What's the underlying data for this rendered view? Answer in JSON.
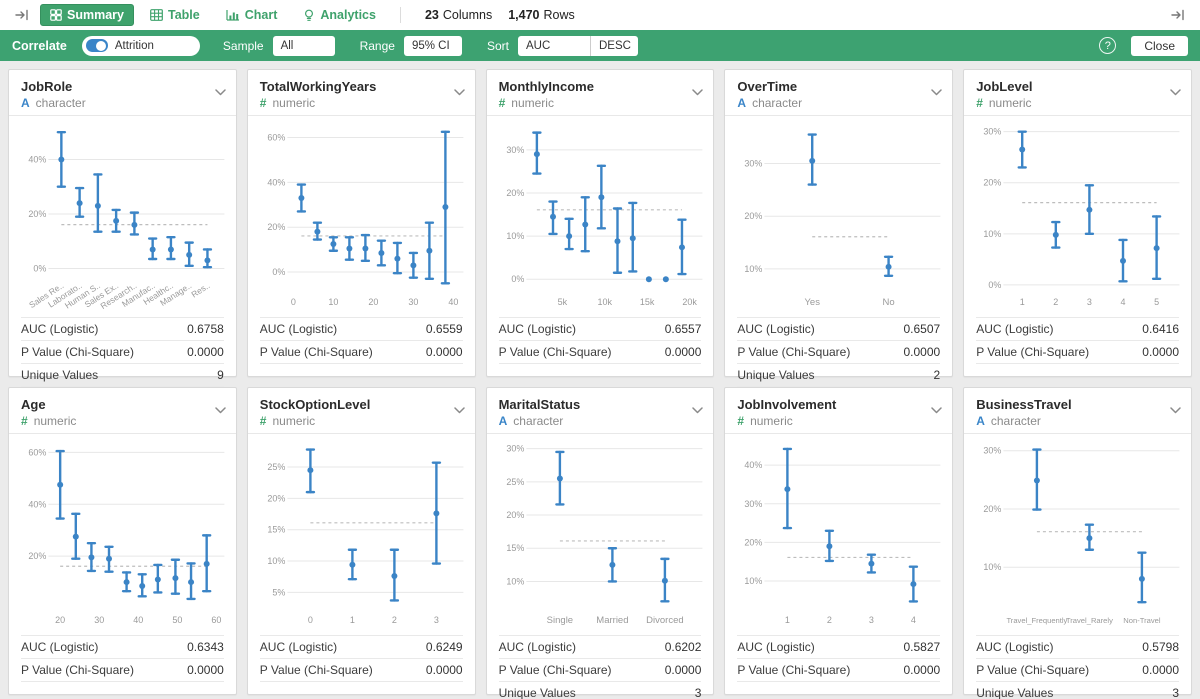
{
  "colors": {
    "green": "#3da271",
    "tab_green": "#3fa26c",
    "blue": "#3b84c6",
    "baseline_gray": "#bdbdbd",
    "grid_gray": "#e7e7e7"
  },
  "topbar": {
    "tabs": [
      {
        "label": "Summary",
        "active": true
      },
      {
        "label": "Table",
        "active": false
      },
      {
        "label": "Chart",
        "active": false
      },
      {
        "label": "Analytics",
        "active": false
      }
    ],
    "columns_count": "23",
    "columns_label": "Columns",
    "rows_count": "1,470",
    "rows_label": "Rows"
  },
  "toolbar": {
    "title": "Correlate",
    "target_label": "Attrition",
    "sample_label": "Sample",
    "sample_value": "All",
    "range_label": "Range",
    "range_value": "95% CI",
    "sort_label": "Sort",
    "sort_value": "AUC",
    "sort_order": "DESC",
    "help_glyph": "?",
    "close_label": "Close"
  },
  "cards": [
    {
      "title": "JobRole",
      "type": "character",
      "stats": [
        [
          "AUC (Logistic)",
          "0.6758"
        ],
        [
          "P Value (Chi-Square)",
          "0.0000"
        ],
        [
          "Unique Values",
          "9"
        ]
      ],
      "chart": {
        "type": "errorbar",
        "ylim": [
          -2,
          53
        ],
        "yticks": [
          0,
          20,
          40
        ],
        "baseline": 16.1,
        "rotate_labels": true,
        "categories": [
          "Sales Re..",
          "Laborato..",
          "Human S..",
          "Sales Ex..",
          "Research..",
          "Manufac..",
          "Healthc..",
          "Manage..",
          "Res.."
        ],
        "points": [
          {
            "v": 40,
            "lo": 30,
            "hi": 50
          },
          {
            "v": 24,
            "lo": 19,
            "hi": 29.5
          },
          {
            "v": 23,
            "lo": 13.5,
            "hi": 34.5
          },
          {
            "v": 17.5,
            "lo": 13.5,
            "hi": 21.5
          },
          {
            "v": 16,
            "lo": 12.5,
            "hi": 20.5
          },
          {
            "v": 7,
            "lo": 3.5,
            "hi": 11
          },
          {
            "v": 7,
            "lo": 3.5,
            "hi": 11.5
          },
          {
            "v": 5,
            "lo": 1,
            "hi": 9.5
          },
          {
            "v": 3,
            "lo": 0.5,
            "hi": 7
          }
        ]
      }
    },
    {
      "title": "TotalWorkingYears",
      "type": "numeric",
      "stats": [
        [
          "AUC (Logistic)",
          "0.6559"
        ],
        [
          "P Value (Chi-Square)",
          "0.0000"
        ]
      ],
      "chart": {
        "type": "errorbar",
        "ylim": [
          -8,
          66
        ],
        "yticks": [
          0,
          20,
          40,
          60
        ],
        "baseline": 16.1,
        "xlim": [
          -1,
          41
        ],
        "xticks": [
          {
            "x": 0,
            "label": "0"
          },
          {
            "x": 10,
            "label": "10"
          },
          {
            "x": 20,
            "label": "20"
          },
          {
            "x": 30,
            "label": "30"
          },
          {
            "x": 40,
            "label": "40"
          }
        ],
        "x": [
          2,
          6,
          10,
          14,
          18,
          22,
          26,
          30,
          34,
          38
        ],
        "points": [
          {
            "v": 33,
            "lo": 27,
            "hi": 39
          },
          {
            "v": 18,
            "lo": 14.5,
            "hi": 22
          },
          {
            "v": 12.5,
            "lo": 9.5,
            "hi": 15.5
          },
          {
            "v": 10.5,
            "lo": 5.5,
            "hi": 15.5
          },
          {
            "v": 10.5,
            "lo": 5,
            "hi": 16.5
          },
          {
            "v": 8.5,
            "lo": 3,
            "hi": 14
          },
          {
            "v": 6,
            "lo": -0.5,
            "hi": 13
          },
          {
            "v": 3,
            "lo": -2.5,
            "hi": 8.5
          },
          {
            "v": 9.5,
            "lo": -3,
            "hi": 22
          },
          {
            "v": 29,
            "lo": -5,
            "hi": 62.5
          }
        ]
      }
    },
    {
      "title": "MonthlyIncome",
      "type": "numeric",
      "stats": [
        [
          "AUC (Logistic)",
          "0.6557"
        ],
        [
          "P Value (Chi-Square)",
          "0.0000"
        ]
      ],
      "chart": {
        "type": "errorbar",
        "ylim": [
          -2.5,
          36
        ],
        "yticks": [
          0,
          10,
          20,
          30
        ],
        "baseline": 16.1,
        "xlim": [
          1,
          20.8
        ],
        "xticks": [
          {
            "x": 5,
            "label": "5k"
          },
          {
            "x": 10,
            "label": "10k"
          },
          {
            "x": 15,
            "label": "15k"
          },
          {
            "x": 20,
            "label": "20k"
          }
        ],
        "x": [
          2,
          3.9,
          5.8,
          7.7,
          9.6,
          11.5,
          13.3,
          15.2,
          17.2,
          19.1
        ],
        "points": [
          {
            "v": 29,
            "lo": 24.5,
            "hi": 34
          },
          {
            "v": 14.5,
            "lo": 10.5,
            "hi": 18
          },
          {
            "v": 10,
            "lo": 7,
            "hi": 14
          },
          {
            "v": 12.7,
            "lo": 6.5,
            "hi": 19
          },
          {
            "v": 19,
            "lo": 11.8,
            "hi": 26.3
          },
          {
            "v": 8.8,
            "lo": 1.5,
            "hi": 16.4
          },
          {
            "v": 9.5,
            "lo": 1.8,
            "hi": 17.7
          },
          {
            "v": 0,
            "lo": 0,
            "hi": 0
          },
          {
            "v": 0,
            "lo": 0,
            "hi": 0
          },
          {
            "v": 7.4,
            "lo": 1.2,
            "hi": 13.8
          }
        ]
      }
    },
    {
      "title": "OverTime",
      "type": "character",
      "stats": [
        [
          "AUC (Logistic)",
          "0.6507"
        ],
        [
          "P Value (Chi-Square)",
          "0.0000"
        ],
        [
          "Unique Values",
          "2"
        ]
      ],
      "chart": {
        "type": "errorbar",
        "ylim": [
          6,
          37.5
        ],
        "yticks": [
          10,
          20,
          30
        ],
        "baseline": 16.1,
        "categories": [
          "Yes",
          "No"
        ],
        "points": [
          {
            "v": 30.5,
            "lo": 26,
            "hi": 35.5
          },
          {
            "v": 10.4,
            "lo": 8.7,
            "hi": 12.3
          }
        ]
      }
    },
    {
      "title": "JobLevel",
      "type": "numeric",
      "stats": [
        [
          "AUC (Logistic)",
          "0.6416"
        ],
        [
          "P Value (Chi-Square)",
          "0.0000"
        ]
      ],
      "chart": {
        "type": "errorbar",
        "ylim": [
          -1,
          31.5
        ],
        "yticks": [
          0,
          10,
          20,
          30
        ],
        "baseline": 16.1,
        "xlim": [
          0.5,
          5.5
        ],
        "xticks": [
          {
            "x": 1,
            "label": "1"
          },
          {
            "x": 2,
            "label": "2"
          },
          {
            "x": 3,
            "label": "3"
          },
          {
            "x": 4,
            "label": "4"
          },
          {
            "x": 5,
            "label": "5"
          }
        ],
        "x": [
          1,
          2,
          3,
          4,
          5
        ],
        "points": [
          {
            "v": 26.5,
            "lo": 23,
            "hi": 30
          },
          {
            "v": 9.8,
            "lo": 7.3,
            "hi": 12.3
          },
          {
            "v": 14.7,
            "lo": 10,
            "hi": 19.5
          },
          {
            "v": 4.7,
            "lo": 0.7,
            "hi": 8.8
          },
          {
            "v": 7.2,
            "lo": 1.2,
            "hi": 13.4
          }
        ]
      }
    },
    {
      "title": "Age",
      "type": "numeric",
      "stats": [
        [
          "AUC (Logistic)",
          "0.6343"
        ],
        [
          "P Value (Chi-Square)",
          "0.0000"
        ]
      ],
      "chart": {
        "type": "errorbar",
        "ylim": [
          0,
          64
        ],
        "yticks": [
          20,
          40,
          60
        ],
        "baseline": 16.1,
        "xlim": [
          17.5,
          60.5
        ],
        "xticks": [
          {
            "x": 20,
            "label": "20"
          },
          {
            "x": 30,
            "label": "30"
          },
          {
            "x": 40,
            "label": "40"
          },
          {
            "x": 50,
            "label": "50"
          },
          {
            "x": 60,
            "label": "60"
          }
        ],
        "x": [
          20,
          24,
          28,
          32.5,
          37,
          41,
          45,
          49.5,
          53.5,
          57.5
        ],
        "points": [
          {
            "v": 47.5,
            "lo": 34.5,
            "hi": 60.5
          },
          {
            "v": 27.5,
            "lo": 19,
            "hi": 36.3
          },
          {
            "v": 19.5,
            "lo": 14.3,
            "hi": 25
          },
          {
            "v": 19,
            "lo": 14,
            "hi": 23.6
          },
          {
            "v": 10,
            "lo": 6.5,
            "hi": 13.7
          },
          {
            "v": 8.5,
            "lo": 4.5,
            "hi": 13
          },
          {
            "v": 11,
            "lo": 6,
            "hi": 16.6
          },
          {
            "v": 11.5,
            "lo": 5.5,
            "hi": 18.6
          },
          {
            "v": 10,
            "lo": 3.5,
            "hi": 17.2
          },
          {
            "v": 17,
            "lo": 6.5,
            "hi": 28
          }
        ]
      }
    },
    {
      "title": "StockOptionLevel",
      "type": "numeric",
      "stats": [
        [
          "AUC (Logistic)",
          "0.6249"
        ],
        [
          "P Value (Chi-Square)",
          "0.0000"
        ]
      ],
      "chart": {
        "type": "errorbar",
        "ylim": [
          2.5,
          29
        ],
        "yticks": [
          5,
          10,
          15,
          20,
          25
        ],
        "baseline": 16.1,
        "xlim": [
          -0.5,
          3.5
        ],
        "xticks": [
          {
            "x": 0,
            "label": "0"
          },
          {
            "x": 1,
            "label": "1"
          },
          {
            "x": 2,
            "label": "2"
          },
          {
            "x": 3,
            "label": "3"
          }
        ],
        "x": [
          0,
          1,
          2,
          3
        ],
        "points": [
          {
            "v": 24.5,
            "lo": 21,
            "hi": 27.8
          },
          {
            "v": 9.4,
            "lo": 7.1,
            "hi": 11.8
          },
          {
            "v": 7.6,
            "lo": 3.7,
            "hi": 11.8
          },
          {
            "v": 17.6,
            "lo": 9.6,
            "hi": 25.7
          }
        ]
      }
    },
    {
      "title": "MaritalStatus",
      "type": "character",
      "stats": [
        [
          "AUC (Logistic)",
          "0.6202"
        ],
        [
          "P Value (Chi-Square)",
          "0.0000"
        ],
        [
          "Unique Values",
          "3"
        ]
      ],
      "chart": {
        "type": "errorbar",
        "ylim": [
          6,
          31
        ],
        "yticks": [
          10,
          15,
          20,
          25,
          30
        ],
        "baseline": 16.1,
        "categories": [
          "Single",
          "Married",
          "Divorced"
        ],
        "points": [
          {
            "v": 25.5,
            "lo": 21.6,
            "hi": 29.5
          },
          {
            "v": 12.5,
            "lo": 10,
            "hi": 15
          },
          {
            "v": 10.1,
            "lo": 7,
            "hi": 13.4
          }
        ]
      }
    },
    {
      "title": "JobInvolvement",
      "type": "numeric",
      "stats": [
        [
          "AUC (Logistic)",
          "0.5827"
        ],
        [
          "P Value (Chi-Square)",
          "0.0000"
        ]
      ],
      "chart": {
        "type": "errorbar",
        "ylim": [
          3,
          46
        ],
        "yticks": [
          10,
          20,
          30,
          40
        ],
        "baseline": 16.1,
        "xlim": [
          0.5,
          4.5
        ],
        "xticks": [
          {
            "x": 1,
            "label": "1"
          },
          {
            "x": 2,
            "label": "2"
          },
          {
            "x": 3,
            "label": "3"
          },
          {
            "x": 4,
            "label": "4"
          }
        ],
        "x": [
          1,
          2,
          3,
          4
        ],
        "points": [
          {
            "v": 33.8,
            "lo": 23.7,
            "hi": 44.2
          },
          {
            "v": 19,
            "lo": 15.2,
            "hi": 23
          },
          {
            "v": 14.5,
            "lo": 12.2,
            "hi": 16.8
          },
          {
            "v": 9.2,
            "lo": 4.7,
            "hi": 13.7
          }
        ]
      }
    },
    {
      "title": "BusinessTravel",
      "type": "character",
      "stats": [
        [
          "AUC (Logistic)",
          "0.5798"
        ],
        [
          "P Value (Chi-Square)",
          "0.0000"
        ],
        [
          "Unique Values",
          "3"
        ]
      ],
      "chart": {
        "type": "errorbar",
        "ylim": [
          3,
          31.5
        ],
        "yticks": [
          10,
          20,
          30
        ],
        "baseline": 16.1,
        "small_labels": true,
        "categories": [
          "Travel_Frequently",
          "Travel_Rarely",
          "Non-Travel"
        ],
        "points": [
          {
            "v": 24.9,
            "lo": 19.9,
            "hi": 30.2
          },
          {
            "v": 15,
            "lo": 13,
            "hi": 17.3
          },
          {
            "v": 8,
            "lo": 4,
            "hi": 12.5
          }
        ]
      }
    }
  ]
}
